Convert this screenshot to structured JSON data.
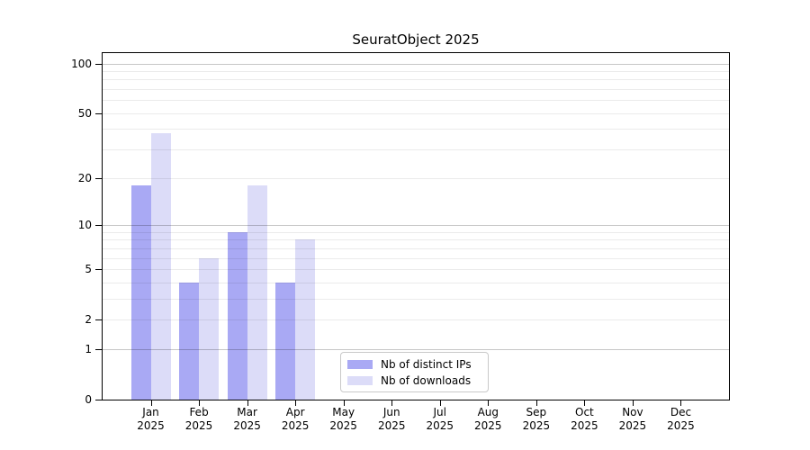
{
  "title": "SeuratObject 2025",
  "chart_data": {
    "type": "bar",
    "title": "SeuratObject 2025",
    "categories": [
      "Jan",
      "Feb",
      "Mar",
      "Apr",
      "May",
      "Jun",
      "Jul",
      "Aug",
      "Sep",
      "Oct",
      "Nov",
      "Dec"
    ],
    "x_tick_second_line": "2025",
    "series": [
      {
        "name": "Nb of distinct IPs",
        "color": "#a9a9f4",
        "values": [
          18,
          4,
          9,
          4,
          null,
          null,
          null,
          null,
          null,
          null,
          null,
          null
        ]
      },
      {
        "name": "Nb of downloads",
        "color": "#dcdcf8",
        "values": [
          38,
          6,
          18,
          8,
          null,
          null,
          null,
          null,
          null,
          null,
          null,
          null
        ]
      }
    ],
    "y_scale": "log1p",
    "y_ticks": [
      0,
      1,
      2,
      5,
      10,
      20,
      50,
      100
    ],
    "y_major_gridlines": [
      1,
      10,
      100
    ],
    "y_minor_gridlines": [
      2,
      3,
      4,
      5,
      6,
      7,
      8,
      9,
      20,
      30,
      40,
      50,
      60,
      70,
      80,
      90
    ],
    "ylim": [
      0,
      115
    ],
    "xlabel": "",
    "ylabel": "",
    "grid": true,
    "legend_position": "lower center",
    "grid_color_major": "rgba(0,0,0,0.22)",
    "grid_color_minor": "rgba(0,0,0,0.08)",
    "axis_color": "#000000"
  }
}
